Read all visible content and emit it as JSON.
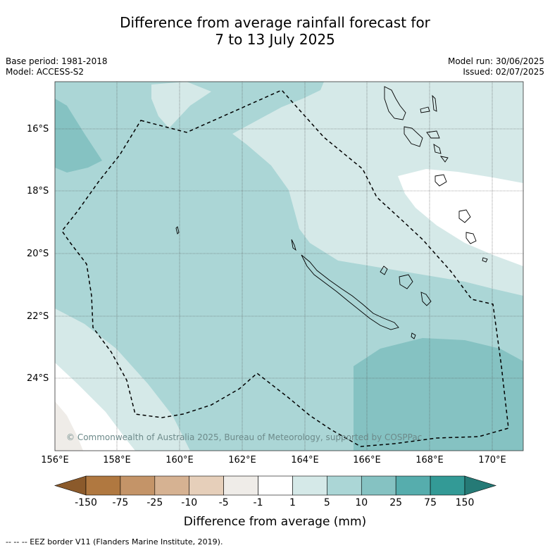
{
  "title_line1": "Difference from average rainfall forecast for",
  "title_line2": "7 to 13 July 2025",
  "base_period": "Base period: 1981-2018",
  "model": "Model: ACCESS-S2",
  "model_run": "Model run: 30/06/2025",
  "issued": "Issued: 02/07/2025",
  "latitudes": [
    "16°S",
    "18°S",
    "20°S",
    "22°S",
    "24°S"
  ],
  "longitudes": [
    "156°E",
    "158°E",
    "160°E",
    "162°E",
    "164°E",
    "166°E",
    "168°E",
    "170°E"
  ],
  "copyright": "© Commonwealth of Australia 2025, Bureau of Meteorology, supported by COSPPac",
  "colorbar": {
    "labels": [
      "-150",
      "-75",
      "-25",
      "-10",
      "-5",
      "-1",
      "1",
      "5",
      "10",
      "25",
      "75",
      "150"
    ],
    "colors": [
      "#8b5a2b",
      "#b07840",
      "#c49468",
      "#d6b292",
      "#e6cfba",
      "#efece8",
      "#ffffff",
      "#d5e9e8",
      "#abd6d6",
      "#85c2c2",
      "#56adad",
      "#339a96",
      "#257a76"
    ],
    "title": "Difference from average (mm)"
  },
  "footnote": "--  --  -- EEZ border V11 (Flanders Marine Institute, 2019).",
  "palette": {
    "land_outline": "#000000",
    "gridline": "#555555"
  }
}
